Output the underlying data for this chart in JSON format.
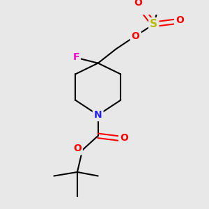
{
  "background_color": "#e8e8e8",
  "atom_colors": {
    "C": "#000000",
    "N": "#2020ff",
    "O": "#ff0000",
    "F": "#ff00cc",
    "S": "#bbbb00"
  },
  "bond_color": "#000000",
  "bond_width": 1.5,
  "figsize": [
    3.0,
    3.0
  ],
  "dpi": 100
}
